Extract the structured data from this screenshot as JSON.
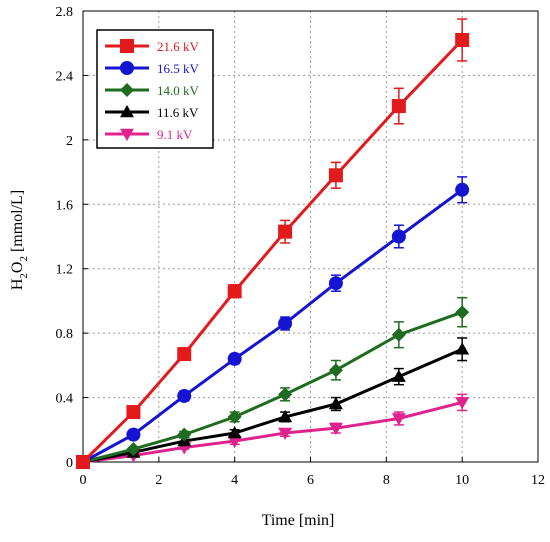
{
  "chart_data": {
    "type": "line",
    "xlabel": "Time [min]",
    "ylabel": {
      "base": "H",
      "sub1": "2",
      "mid": "O",
      "sub2": "2",
      "tail": " [mmol/L]"
    },
    "xlim": [
      0,
      12
    ],
    "ylim": [
      0,
      2.8
    ],
    "xticks": [
      0,
      2,
      4,
      6,
      8,
      10,
      12
    ],
    "yticks": [
      0,
      0.4,
      0.8,
      1.2,
      1.6,
      2,
      2.4,
      2.8
    ],
    "xtick_labels": [
      "0",
      "2",
      "4",
      "6",
      "8",
      "10",
      "12"
    ],
    "ytick_labels": [
      "0",
      "0.4",
      "0.8",
      "1.2",
      "1.6",
      "2",
      "2.4",
      "2.8"
    ],
    "grid": true,
    "legend_position": "top-left",
    "x": [
      0,
      1.33,
      2.67,
      4,
      5.33,
      6.67,
      8.33,
      10
    ],
    "series": [
      {
        "name": "21.6 kV",
        "color": "#e31a1c",
        "marker": "square",
        "values": [
          0,
          0.31,
          0.67,
          1.06,
          1.43,
          1.78,
          2.21,
          2.62
        ],
        "errors": [
          0,
          0.03,
          0.03,
          0.04,
          0.07,
          0.08,
          0.11,
          0.13
        ]
      },
      {
        "name": "16.5 kV",
        "color": "#1414d2",
        "marker": "circle",
        "values": [
          0,
          0.17,
          0.41,
          0.64,
          0.86,
          1.11,
          1.4,
          1.69
        ],
        "errors": [
          0,
          0.02,
          0.03,
          0.03,
          0.04,
          0.05,
          0.07,
          0.08
        ]
      },
      {
        "name": "14.0 kV",
        "color": "#1f6b1f",
        "marker": "diamond",
        "values": [
          0,
          0.08,
          0.17,
          0.28,
          0.42,
          0.57,
          0.79,
          0.93
        ],
        "errors": [
          0,
          0.01,
          0.02,
          0.03,
          0.04,
          0.06,
          0.08,
          0.09
        ]
      },
      {
        "name": "11.6 kV",
        "color": "#000000",
        "marker": "triangle-up",
        "values": [
          0,
          0.06,
          0.13,
          0.18,
          0.28,
          0.36,
          0.53,
          0.7
        ],
        "errors": [
          0,
          0.01,
          0.02,
          0.02,
          0.03,
          0.04,
          0.05,
          0.07
        ]
      },
      {
        "name": "9.1 kV",
        "color": "#e0228e",
        "marker": "triangle-down",
        "values": [
          0,
          0.04,
          0.09,
          0.13,
          0.18,
          0.21,
          0.27,
          0.37
        ],
        "errors": [
          0,
          0.01,
          0.01,
          0.02,
          0.02,
          0.03,
          0.04,
          0.05
        ]
      }
    ]
  }
}
